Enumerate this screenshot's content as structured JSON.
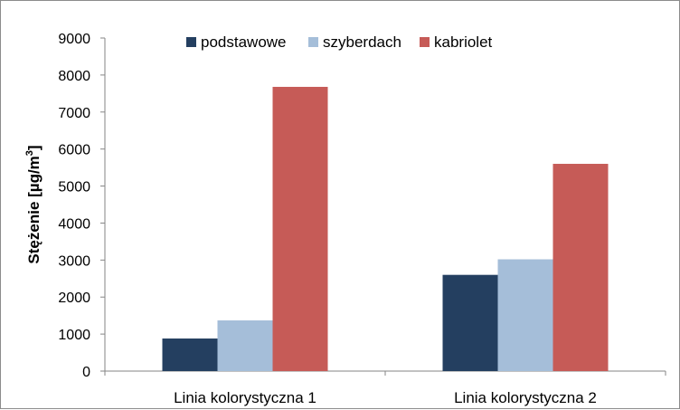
{
  "chart_data": {
    "type": "bar",
    "categories": [
      "Linia kolorystyczna 1",
      "Linia kolorystyczna 2"
    ],
    "series": [
      {
        "name": "podstawowe",
        "values": [
          880,
          2600
        ],
        "color": "#243f60"
      },
      {
        "name": "szyberdach",
        "values": [
          1370,
          3020
        ],
        "color": "#a5bed9"
      },
      {
        "name": "kabriolet",
        "values": [
          7680,
          5600
        ],
        "color": "#c65b57"
      }
    ],
    "title": "",
    "xlabel": "",
    "ylabel": "Stężenie [µg/m",
    "ylabel_sup": "3",
    "ylabel_end": "]",
    "ylim": [
      0,
      9000
    ],
    "yticks": [
      0,
      1000,
      2000,
      3000,
      4000,
      5000,
      6000,
      7000,
      8000,
      9000
    ],
    "grid": false,
    "legend": "top"
  }
}
